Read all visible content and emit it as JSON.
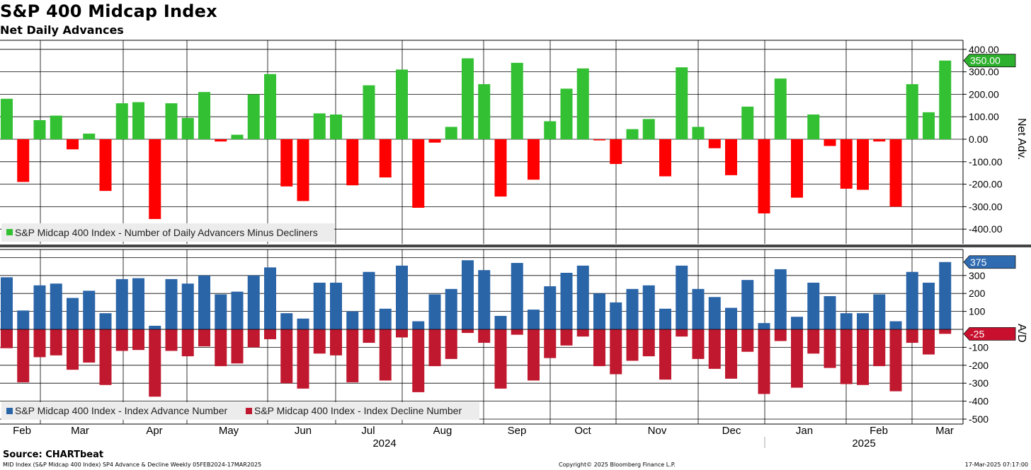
{
  "title": "S&P 400 Midcap Index",
  "subtitle": "Net Daily Advances",
  "source": "Source: CHARTbeat",
  "footer": {
    "left": "MID Index (S&P Midcap 400 Index) SP4 Advance & Decline  Weekly 05FEB2024-17MAR2025",
    "center": "Copyright© 2025 Bloomberg Finance L.P.",
    "right": "17-Mar-2025 07:17:00"
  },
  "colors": {
    "positive": "#33c033",
    "negative": "#ff0000",
    "advance": "#2a65a8",
    "decline": "#c0182e",
    "badge_green": "#2db02d",
    "badge_blue": "#2f6bb0",
    "badge_red": "#c8102e"
  },
  "x_axis": {
    "month_labels": [
      "Feb",
      "Mar",
      "Apr",
      "May",
      "Jun",
      "Jul",
      "Aug",
      "Sep",
      "Oct",
      "Nov",
      "Dec",
      "Jan",
      "Feb",
      "Mar"
    ],
    "year_labels": [
      "2024",
      "2025"
    ]
  },
  "chart_data": [
    {
      "type": "bar",
      "title": "Net Daily Advances",
      "ylabel": "Net Adv.",
      "ylim": [
        -480,
        420
      ],
      "yticks": [
        "400.00",
        "300.00",
        "200.00",
        "100.00",
        "0.00",
        "-100.00",
        "-200.00",
        "-300.00",
        "-400.00"
      ],
      "ytick_values": [
        400,
        300,
        200,
        100,
        0,
        -100,
        -200,
        -300,
        -400
      ],
      "legend": [
        "S&P Midcap 400 Index - Number of Daily Advancers Minus Decliners"
      ],
      "legend_position": "bottom-left",
      "last_value_label": "350.00",
      "series": [
        {
          "name": "S&P Midcap 400 Index - Number of Daily Advancers Minus Decliners",
          "values": [
            180,
            -190,
            85,
            105,
            -45,
            25,
            -230,
            160,
            165,
            -355,
            160,
            95,
            210,
            -10,
            20,
            200,
            290,
            -210,
            -275,
            115,
            110,
            -205,
            240,
            -170,
            310,
            -305,
            -15,
            55,
            360,
            245,
            -255,
            340,
            -180,
            80,
            225,
            315,
            -5,
            -110,
            45,
            90,
            -165,
            320,
            55,
            -40,
            -160,
            145,
            -330,
            270,
            -260,
            110,
            -30,
            -220,
            -225,
            -10,
            -300,
            245,
            120,
            350
          ]
        }
      ]
    },
    {
      "type": "bar",
      "title": "",
      "ylabel": "A/D",
      "ylim": [
        -540,
        420
      ],
      "yticks": [
        "300",
        "200",
        "100",
        "-100",
        "-200",
        "-300",
        "-400",
        "-500"
      ],
      "ytick_values": [
        300,
        200,
        100,
        -100,
        -200,
        -300,
        -400,
        -500
      ],
      "legend": [
        "S&P Midcap 400 Index - Index Advance Number",
        "S&P Midcap 400 Index - Index Decline Number"
      ],
      "legend_position": "bottom-left",
      "last_value_labels": [
        "375",
        "-25"
      ],
      "series": [
        {
          "name": "S&P Midcap 400 Index - Index Advance Number",
          "values": [
            290,
            105,
            245,
            255,
            175,
            215,
            90,
            280,
            285,
            20,
            280,
            255,
            300,
            195,
            210,
            300,
            345,
            90,
            60,
            260,
            260,
            100,
            320,
            115,
            355,
            45,
            195,
            225,
            385,
            330,
            75,
            370,
            110,
            240,
            315,
            355,
            200,
            150,
            225,
            245,
            115,
            355,
            225,
            180,
            120,
            275,
            35,
            335,
            70,
            260,
            185,
            90,
            90,
            195,
            45,
            320,
            260,
            375
          ]
        },
        {
          "name": "S&P Midcap 400 Index - Index Decline Number",
          "values": [
            -105,
            -295,
            -155,
            -145,
            -225,
            -185,
            -310,
            -120,
            -115,
            -375,
            -120,
            -150,
            -95,
            -205,
            -190,
            -100,
            -55,
            -300,
            -330,
            -135,
            -145,
            -295,
            -75,
            -285,
            -45,
            -350,
            -205,
            -165,
            -20,
            -75,
            -330,
            -30,
            -285,
            -160,
            -90,
            -40,
            -205,
            -250,
            -175,
            -150,
            -280,
            -40,
            -165,
            -220,
            -275,
            -125,
            -360,
            -65,
            -325,
            -135,
            -215,
            -305,
            -310,
            -205,
            -345,
            -75,
            -140,
            -25
          ]
        }
      ]
    }
  ]
}
